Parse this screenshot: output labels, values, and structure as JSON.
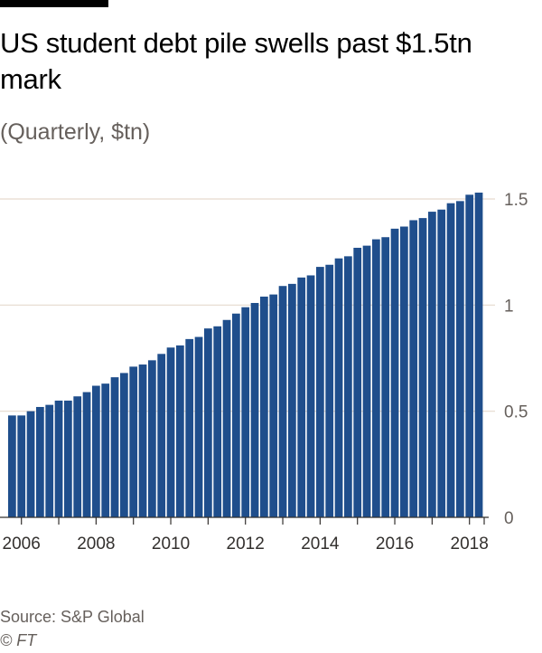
{
  "header": {
    "title": "US student debt pile swells past $1.5tn mark",
    "subtitle": "(Quarterly, $tn)"
  },
  "footer": {
    "source": "Source: S&P Global",
    "copyright": "© FT"
  },
  "colors": {
    "bar": "#1f4e8c",
    "grid": "#e6d9ce",
    "axis": "#33302e",
    "text": "#66605c"
  },
  "chart_data": {
    "type": "bar",
    "title": "US student debt pile swells past $1.5tn mark",
    "subtitle": "(Quarterly, $tn)",
    "xlabel": "",
    "ylabel": "",
    "ylim": [
      0,
      1.5
    ],
    "yticks": [
      0,
      0.5,
      1,
      1.5
    ],
    "ytick_labels": [
      "0",
      "0.5",
      "1",
      "1.5"
    ],
    "y_axis_side": "right",
    "grid": true,
    "xtick_labels": [
      "2006",
      "2008",
      "2010",
      "2012",
      "2014",
      "2016",
      "2018"
    ],
    "start_year": 2005,
    "start_quarter": 4,
    "values": [
      0.48,
      0.48,
      0.5,
      0.52,
      0.53,
      0.55,
      0.55,
      0.57,
      0.59,
      0.62,
      0.63,
      0.66,
      0.68,
      0.71,
      0.72,
      0.74,
      0.77,
      0.8,
      0.81,
      0.84,
      0.85,
      0.89,
      0.9,
      0.93,
      0.96,
      0.99,
      1.01,
      1.04,
      1.05,
      1.09,
      1.1,
      1.13,
      1.14,
      1.18,
      1.19,
      1.22,
      1.23,
      1.27,
      1.28,
      1.31,
      1.32,
      1.36,
      1.37,
      1.4,
      1.41,
      1.44,
      1.45,
      1.48,
      1.49,
      1.52,
      1.53
    ]
  }
}
